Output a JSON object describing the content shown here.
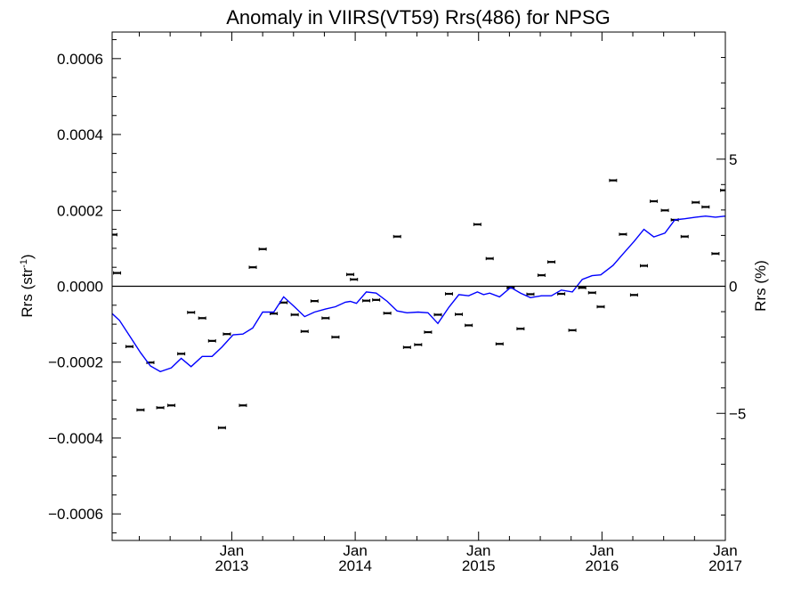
{
  "chart_data": {
    "type": "scatter",
    "title": "Anomaly in VIIRS(VT59) Rrs(486) for NPSG",
    "ylabel": {
      "base": "Rrs (str",
      "sup": "-1",
      "tail": ")"
    },
    "y2label": "Rrs (%)",
    "xlim": [
      2012.03,
      2017.0
    ],
    "ylim": [
      -0.00067,
      0.00067
    ],
    "y2lim": [
      -10,
      10
    ],
    "grid": false,
    "zero_line": true,
    "x_ticks": [
      {
        "x": 2013.0,
        "label1": "Jan",
        "label2": "2013"
      },
      {
        "x": 2014.0,
        "label1": "Jan",
        "label2": "2014"
      },
      {
        "x": 2015.0,
        "label1": "Jan",
        "label2": "2015"
      },
      {
        "x": 2016.0,
        "label1": "Jan",
        "label2": "2016"
      },
      {
        "x": 2017.0,
        "label1": "Jan",
        "label2": "2017"
      }
    ],
    "y_ticks": [
      {
        "y": 0.0006,
        "label": "0.0006"
      },
      {
        "y": 0.0004,
        "label": "0.0004"
      },
      {
        "y": 0.0002,
        "label": "0.0002"
      },
      {
        "y": 0.0,
        "label": "0.0000"
      },
      {
        "y": -0.0002,
        "label": "−0.0002"
      },
      {
        "y": -0.0004,
        "label": "−0.0004"
      },
      {
        "y": -0.0006,
        "label": "−0.0006"
      }
    ],
    "y2_ticks": [
      {
        "y": 5,
        "label": "5"
      },
      {
        "y": 0,
        "label": "0"
      },
      {
        "y": -5,
        "label": "−5"
      }
    ],
    "series": [
      {
        "kind": "points",
        "color": "#000000",
        "points": [
          [
            2012.04,
            0.000136
          ],
          [
            2012.07,
            3.5e-05
          ],
          [
            2012.17,
            -0.000159
          ],
          [
            2012.26,
            -0.000326
          ],
          [
            2012.34,
            -0.000201
          ],
          [
            2012.42,
            -0.00032
          ],
          [
            2012.51,
            -0.000314
          ],
          [
            2012.59,
            -0.000178
          ],
          [
            2012.67,
            -6.9e-05
          ],
          [
            2012.76,
            -8.4e-05
          ],
          [
            2012.84,
            -0.000144
          ],
          [
            2012.92,
            -0.000373
          ],
          [
            2012.96,
            -0.000126
          ],
          [
            2013.09,
            -0.000314
          ],
          [
            2013.17,
            5e-05
          ],
          [
            2013.25,
            9.8e-05
          ],
          [
            2013.34,
            -7.2e-05
          ],
          [
            2013.42,
            -4.3e-05
          ],
          [
            2013.51,
            -7.5e-05
          ],
          [
            2013.59,
            -0.000119
          ],
          [
            2013.67,
            -3.9e-05
          ],
          [
            2013.76,
            -8.4e-05
          ],
          [
            2013.84,
            -0.000134
          ],
          [
            2013.96,
            3.1e-05
          ],
          [
            2013.99,
            1.8e-05
          ],
          [
            2014.09,
            -3.8e-05
          ],
          [
            2014.17,
            -3.6e-05
          ],
          [
            2014.26,
            -7.1e-05
          ],
          [
            2014.34,
            0.000131
          ],
          [
            2014.42,
            -0.000161
          ],
          [
            2014.51,
            -0.000154
          ],
          [
            2014.59,
            -0.000121
          ],
          [
            2014.67,
            -7.5e-05
          ],
          [
            2014.76,
            -2e-05
          ],
          [
            2014.84,
            -7.4e-05
          ],
          [
            2014.92,
            -0.000103
          ],
          [
            2014.99,
            0.000163
          ],
          [
            2015.09,
            7.3e-05
          ],
          [
            2015.17,
            -0.000152
          ],
          [
            2015.26,
            -4e-06
          ],
          [
            2015.34,
            -0.000112
          ],
          [
            2015.42,
            -2.1e-05
          ],
          [
            2015.51,
            2.9e-05
          ],
          [
            2015.59,
            6.4e-05
          ],
          [
            2015.67,
            -2e-05
          ],
          [
            2015.76,
            -0.000116
          ],
          [
            2015.84,
            -4e-06
          ],
          [
            2015.92,
            -1.7e-05
          ],
          [
            2015.99,
            -5.4e-05
          ],
          [
            2016.09,
            0.000279
          ],
          [
            2016.17,
            0.000137
          ],
          [
            2016.26,
            -2.3e-05
          ],
          [
            2016.34,
            5.4e-05
          ],
          [
            2016.42,
            0.000224
          ],
          [
            2016.51,
            0.0002
          ],
          [
            2016.59,
            0.000175
          ],
          [
            2016.67,
            0.000131
          ],
          [
            2016.76,
            0.000221
          ],
          [
            2016.84,
            0.000209
          ],
          [
            2016.92,
            8.6e-05
          ],
          [
            2016.99,
            0.000253
          ]
        ]
      },
      {
        "kind": "line",
        "color": "#0000ff",
        "points": [
          [
            2012.03,
            -7.2e-05
          ],
          [
            2012.09,
            -9e-05
          ],
          [
            2012.17,
            -0.00013
          ],
          [
            2012.26,
            -0.000175
          ],
          [
            2012.34,
            -0.00021
          ],
          [
            2012.42,
            -0.000225
          ],
          [
            2012.51,
            -0.000215
          ],
          [
            2012.59,
            -0.00019
          ],
          [
            2012.67,
            -0.000212
          ],
          [
            2012.76,
            -0.000185
          ],
          [
            2012.84,
            -0.000185
          ],
          [
            2012.92,
            -0.00016
          ],
          [
            2013.01,
            -0.000128
          ],
          [
            2013.09,
            -0.000126
          ],
          [
            2013.17,
            -0.00011
          ],
          [
            2013.25,
            -6.8e-05
          ],
          [
            2013.34,
            -6.8e-05
          ],
          [
            2013.42,
            -2.8e-05
          ],
          [
            2013.51,
            -5.5e-05
          ],
          [
            2013.59,
            -8e-05
          ],
          [
            2013.67,
            -6.8e-05
          ],
          [
            2013.76,
            -6e-05
          ],
          [
            2013.84,
            -5.4e-05
          ],
          [
            2013.92,
            -4.2e-05
          ],
          [
            2013.96,
            -4e-05
          ],
          [
            2014.01,
            -4.5e-05
          ],
          [
            2014.09,
            -1.5e-05
          ],
          [
            2014.17,
            -1.8e-05
          ],
          [
            2014.26,
            -4e-05
          ],
          [
            2014.34,
            -6.5e-05
          ],
          [
            2014.42,
            -7e-05
          ],
          [
            2014.51,
            -6.8e-05
          ],
          [
            2014.59,
            -7e-05
          ],
          [
            2014.67,
            -9.8e-05
          ],
          [
            2014.76,
            -5.5e-05
          ],
          [
            2014.84,
            -2.2e-05
          ],
          [
            2014.92,
            -2.5e-05
          ],
          [
            2014.99,
            -1.5e-05
          ],
          [
            2015.04,
            -2.2e-05
          ],
          [
            2015.09,
            -1.8e-05
          ],
          [
            2015.17,
            -2.8e-05
          ],
          [
            2015.26,
            -3e-06
          ],
          [
            2015.34,
            -1.8e-05
          ],
          [
            2015.42,
            -3e-05
          ],
          [
            2015.51,
            -2.5e-05
          ],
          [
            2015.59,
            -2.5e-05
          ],
          [
            2015.67,
            -1e-05
          ],
          [
            2015.76,
            -1.5e-05
          ],
          [
            2015.84,
            1.8e-05
          ],
          [
            2015.92,
            2.8e-05
          ],
          [
            2015.99,
            3e-05
          ],
          [
            2016.09,
            5.5e-05
          ],
          [
            2016.17,
            8.5e-05
          ],
          [
            2016.26,
            0.000118
          ],
          [
            2016.34,
            0.00015
          ],
          [
            2016.42,
            0.00013
          ],
          [
            2016.51,
            0.00014
          ],
          [
            2016.59,
            0.000175
          ],
          [
            2016.67,
            0.000178
          ],
          [
            2016.76,
            0.000182
          ],
          [
            2016.84,
            0.000185
          ],
          [
            2016.92,
            0.000182
          ],
          [
            2017.0,
            0.000185
          ]
        ]
      }
    ]
  }
}
